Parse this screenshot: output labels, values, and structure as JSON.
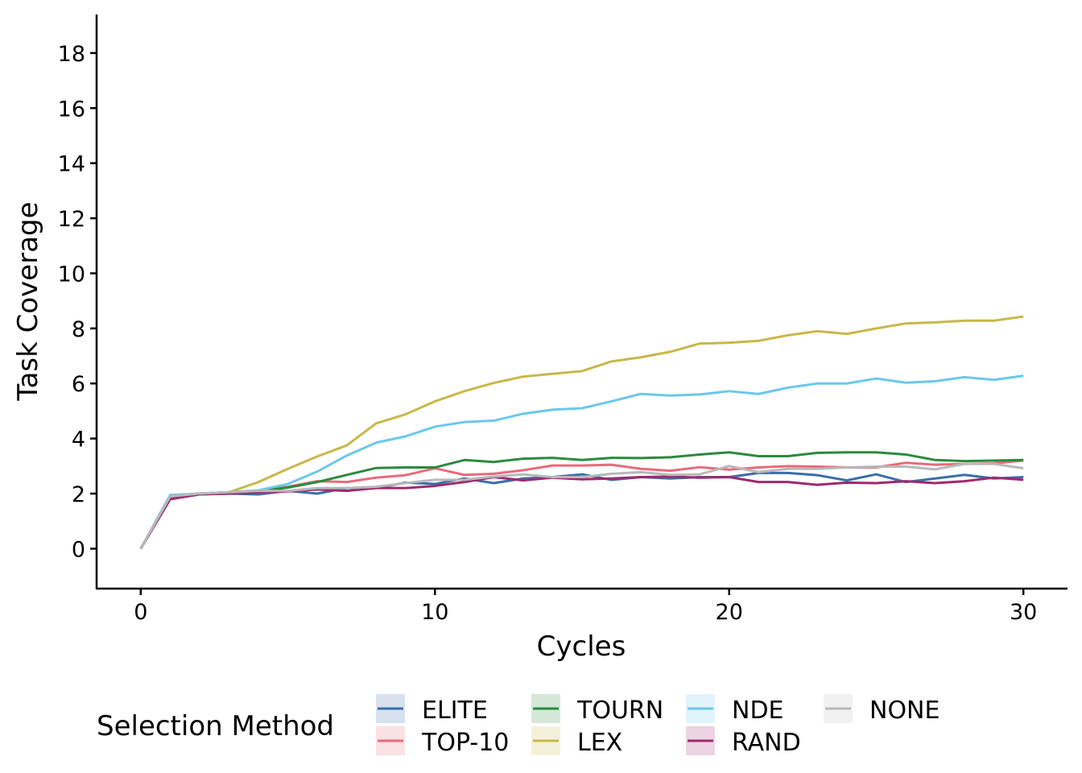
{
  "chart_data": {
    "type": "line",
    "xlabel": "Cycles",
    "ylabel": "Task Coverage",
    "xlim": [
      -1.5,
      31.5
    ],
    "ylim": [
      -1.45,
      19.4
    ],
    "x_ticks": [
      0,
      10,
      20,
      30
    ],
    "y_ticks": [
      0,
      2,
      4,
      6,
      8,
      10,
      12,
      14,
      16,
      18
    ],
    "grid": false,
    "legend_position": "bottom",
    "legend_title": "Selection Method",
    "x": [
      0,
      1,
      2,
      3,
      4,
      5,
      6,
      7,
      8,
      9,
      10,
      11,
      12,
      13,
      14,
      15,
      16,
      17,
      18,
      19,
      20,
      21,
      22,
      23,
      24,
      25,
      26,
      27,
      28,
      29,
      30
    ],
    "series": [
      {
        "name": "ELITE",
        "color": "#3b6ea8",
        "values": [
          0,
          1.8,
          1.97,
          2.0,
          1.97,
          2.1,
          2.0,
          2.2,
          2.2,
          2.4,
          2.35,
          2.55,
          2.38,
          2.55,
          2.6,
          2.7,
          2.5,
          2.6,
          2.55,
          2.6,
          2.6,
          2.75,
          2.75,
          2.67,
          2.48,
          2.7,
          2.42,
          2.55,
          2.68,
          2.55,
          2.6
        ]
      },
      {
        "name": "TOP-10",
        "color": "#e96a7a",
        "values": [
          0,
          1.9,
          2.0,
          2.05,
          2.1,
          2.25,
          2.45,
          2.42,
          2.58,
          2.67,
          2.92,
          2.68,
          2.72,
          2.85,
          3.02,
          3.02,
          3.05,
          2.9,
          2.83,
          2.96,
          2.87,
          2.95,
          3.0,
          2.98,
          2.95,
          2.95,
          3.12,
          3.05,
          3.08,
          3.1,
          3.2
        ]
      },
      {
        "name": "TOURN",
        "color": "#2b8a3e",
        "values": [
          0,
          1.9,
          2.0,
          2.02,
          2.08,
          2.22,
          2.42,
          2.68,
          2.93,
          2.95,
          2.95,
          3.22,
          3.15,
          3.27,
          3.3,
          3.22,
          3.3,
          3.29,
          3.32,
          3.42,
          3.5,
          3.36,
          3.36,
          3.48,
          3.5,
          3.5,
          3.42,
          3.22,
          3.18,
          3.2,
          3.22
        ]
      },
      {
        "name": "LEX",
        "color": "#c9b74a",
        "values": [
          0,
          1.9,
          2.0,
          2.05,
          2.42,
          2.9,
          3.35,
          3.75,
          4.55,
          4.88,
          5.35,
          5.72,
          6.02,
          6.25,
          6.35,
          6.45,
          6.8,
          6.95,
          7.15,
          7.45,
          7.48,
          7.55,
          7.75,
          7.9,
          7.8,
          8.0,
          8.18,
          8.22,
          8.28,
          8.28,
          8.43
        ]
      },
      {
        "name": "NDE",
        "color": "#6bc8ea",
        "values": [
          0,
          1.95,
          2.0,
          2.05,
          2.12,
          2.35,
          2.8,
          3.38,
          3.85,
          4.08,
          4.43,
          4.6,
          4.65,
          4.9,
          5.05,
          5.1,
          5.35,
          5.62,
          5.56,
          5.6,
          5.72,
          5.62,
          5.85,
          6.0,
          6.0,
          6.18,
          6.03,
          6.08,
          6.23,
          6.13,
          6.28
        ]
      },
      {
        "name": "RAND",
        "color": "#9e2a6f",
        "values": [
          0,
          1.8,
          1.98,
          2.0,
          2.05,
          2.08,
          2.15,
          2.1,
          2.2,
          2.2,
          2.28,
          2.42,
          2.6,
          2.48,
          2.58,
          2.52,
          2.55,
          2.6,
          2.62,
          2.58,
          2.6,
          2.42,
          2.42,
          2.32,
          2.4,
          2.38,
          2.45,
          2.38,
          2.45,
          2.58,
          2.5
        ]
      },
      {
        "name": "NONE",
        "color": "#b8b8b8",
        "values": [
          0,
          1.9,
          2.0,
          2.05,
          2.1,
          2.1,
          2.2,
          2.2,
          2.25,
          2.38,
          2.5,
          2.5,
          2.62,
          2.7,
          2.6,
          2.6,
          2.72,
          2.78,
          2.68,
          2.7,
          3.0,
          2.78,
          2.9,
          2.9,
          2.95,
          2.98,
          2.98,
          2.88,
          3.08,
          3.08,
          2.92
        ]
      }
    ]
  }
}
